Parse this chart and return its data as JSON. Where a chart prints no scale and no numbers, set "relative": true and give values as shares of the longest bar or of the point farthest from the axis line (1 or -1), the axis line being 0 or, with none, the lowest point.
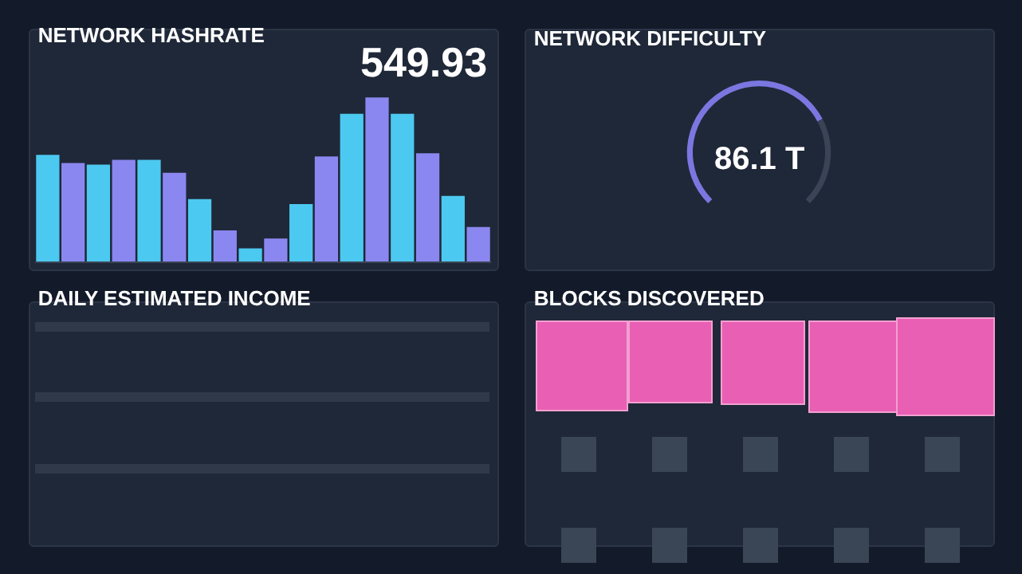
{
  "chart_data": [
    {
      "type": "bar",
      "title": "NETWORK HASHRATE",
      "relative": true,
      "categories": [
        null,
        null,
        null,
        null,
        null,
        null,
        null,
        null,
        null,
        null,
        null,
        null,
        null,
        null,
        null,
        null,
        null,
        null
      ],
      "values": [
        0.65,
        0.6,
        0.59,
        0.62,
        0.62,
        0.54,
        0.38,
        0.19,
        0.08,
        0.14,
        0.35,
        0.64,
        0.9,
        1,
        0.9,
        0.66,
        0.4,
        0.21
      ],
      "colors": [
        "#4cc9f0",
        "#8b87f0",
        "#4cc9f0",
        "#8b87f0",
        "#4cc9f0",
        "#8b87f0",
        "#4cc9f0",
        "#8b87f0",
        "#4cc9f0",
        "#8b87f0",
        "#4cc9f0",
        "#8b87f0",
        "#4cc9f0",
        "#8b87f0",
        "#4cc9f0",
        "#8b87f0",
        "#4cc9f0",
        "#8b87f0"
      ],
      "annotations": [
        "549.93"
      ],
      "legend": false
    },
    {
      "type": "donut",
      "title": "NETWORK DIFFICULTY",
      "categories": [
        null,
        null
      ],
      "values": [
        73,
        27
      ],
      "colors": [
        "#7b77e0",
        "#3a4456"
      ],
      "annotations": [
        "86.1 T"
      ],
      "legend": false
    },
    {
      "type": "other",
      "title": "DAILY ESTIMATED INCOME"
    },
    {
      "type": "other",
      "title": "BLOCKS DISCOVERED"
    }
  ]
}
